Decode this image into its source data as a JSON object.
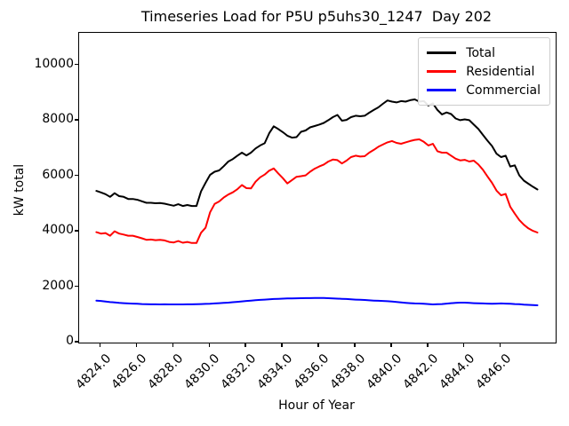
{
  "title": "Timeseries Load for P5U p5uhs30_1247  Day 202",
  "chart_data": {
    "type": "line",
    "title": "Timeseries Load for P5U p5uhs30_1247  Day 202",
    "xlabel": "Hour of Year",
    "ylabel": "kW total",
    "xlim": [
      4822.8,
      4849.0
    ],
    "ylim": [
      0,
      11170
    ],
    "grid": false,
    "legend_position": "upper right",
    "xticks": [
      4824,
      4826,
      4828,
      4830,
      4832,
      4834,
      4836,
      4838,
      4840,
      4842,
      4844,
      4846
    ],
    "xtick_labels": [
      "4824.0",
      "4826.0",
      "4828.0",
      "4830.0",
      "4832.0",
      "4834.0",
      "4836.0",
      "4838.0",
      "4840.0",
      "4842.0",
      "4844.0",
      "4846.0"
    ],
    "yticks": [
      0,
      2000,
      4000,
      6000,
      8000,
      10000
    ],
    "ytick_labels": [
      "0",
      "2000",
      "4000",
      "6000",
      "8000",
      "10000"
    ],
    "x_start": 4823.75,
    "x_step": 0.25,
    "series": [
      {
        "name": "Total",
        "color": "#000000",
        "values": [
          5470,
          5415,
          5350,
          5255,
          5385,
          5280,
          5255,
          5180,
          5180,
          5150,
          5095,
          5040,
          5040,
          5025,
          5030,
          5010,
          4970,
          4935,
          4990,
          4925,
          4960,
          4925,
          4925,
          5450,
          5760,
          6050,
          6160,
          6210,
          6360,
          6530,
          6620,
          6740,
          6850,
          6750,
          6850,
          7000,
          7110,
          7190,
          7550,
          7800,
          7700,
          7590,
          7460,
          7390,
          7410,
          7600,
          7650,
          7760,
          7810,
          7860,
          7920,
          8020,
          8130,
          8210,
          8000,
          8030,
          8130,
          8180,
          8160,
          8180,
          8290,
          8390,
          8480,
          8610,
          8730,
          8690,
          8660,
          8710,
          8690,
          8740,
          8770,
          8690,
          8710,
          8550,
          8630,
          8390,
          8230,
          8300,
          8240,
          8080,
          8020,
          8050,
          8020,
          7860,
          7700,
          7490,
          7280,
          7090,
          6810,
          6690,
          6740,
          6350,
          6390,
          6030,
          5840,
          5730,
          5620,
          5520
        ]
      },
      {
        "name": "Residential",
        "color": "#ff0000",
        "values": [
          3980,
          3930,
          3950,
          3855,
          4015,
          3930,
          3895,
          3855,
          3855,
          3810,
          3760,
          3705,
          3715,
          3695,
          3705,
          3685,
          3630,
          3610,
          3660,
          3600,
          3630,
          3590,
          3590,
          3960,
          4140,
          4700,
          5000,
          5090,
          5230,
          5340,
          5420,
          5530,
          5680,
          5570,
          5560,
          5800,
          5960,
          6060,
          6200,
          6280,
          6100,
          5930,
          5740,
          5860,
          5980,
          6000,
          6030,
          6160,
          6270,
          6350,
          6420,
          6530,
          6600,
          6580,
          6460,
          6560,
          6690,
          6740,
          6710,
          6720,
          6850,
          6950,
          7060,
          7140,
          7220,
          7270,
          7200,
          7170,
          7220,
          7270,
          7310,
          7330,
          7240,
          7110,
          7170,
          6900,
          6850,
          6850,
          6740,
          6630,
          6570,
          6590,
          6530,
          6560,
          6420,
          6230,
          5990,
          5760,
          5480,
          5310,
          5360,
          4900,
          4650,
          4420,
          4250,
          4120,
          4030,
          3970
        ]
      },
      {
        "name": "Commercial",
        "color": "#0000ff",
        "values": [
          1510,
          1500,
          1480,
          1460,
          1450,
          1430,
          1420,
          1410,
          1405,
          1400,
          1390,
          1385,
          1380,
          1378,
          1376,
          1378,
          1375,
          1376,
          1375,
          1376,
          1378,
          1380,
          1385,
          1390,
          1395,
          1400,
          1410,
          1420,
          1430,
          1440,
          1455,
          1470,
          1485,
          1500,
          1515,
          1530,
          1540,
          1550,
          1560,
          1570,
          1578,
          1585,
          1590,
          1595,
          1598,
          1600,
          1602,
          1605,
          1608,
          1610,
          1608,
          1600,
          1595,
          1585,
          1578,
          1570,
          1560,
          1550,
          1542,
          1535,
          1525,
          1515,
          1508,
          1500,
          1490,
          1480,
          1465,
          1450,
          1435,
          1420,
          1412,
          1408,
          1400,
          1390,
          1375,
          1385,
          1390,
          1405,
          1420,
          1430,
          1440,
          1440,
          1430,
          1420,
          1415,
          1410,
          1405,
          1400,
          1405,
          1410,
          1405,
          1400,
          1390,
          1385,
          1370,
          1360,
          1350,
          1345
        ]
      }
    ]
  }
}
